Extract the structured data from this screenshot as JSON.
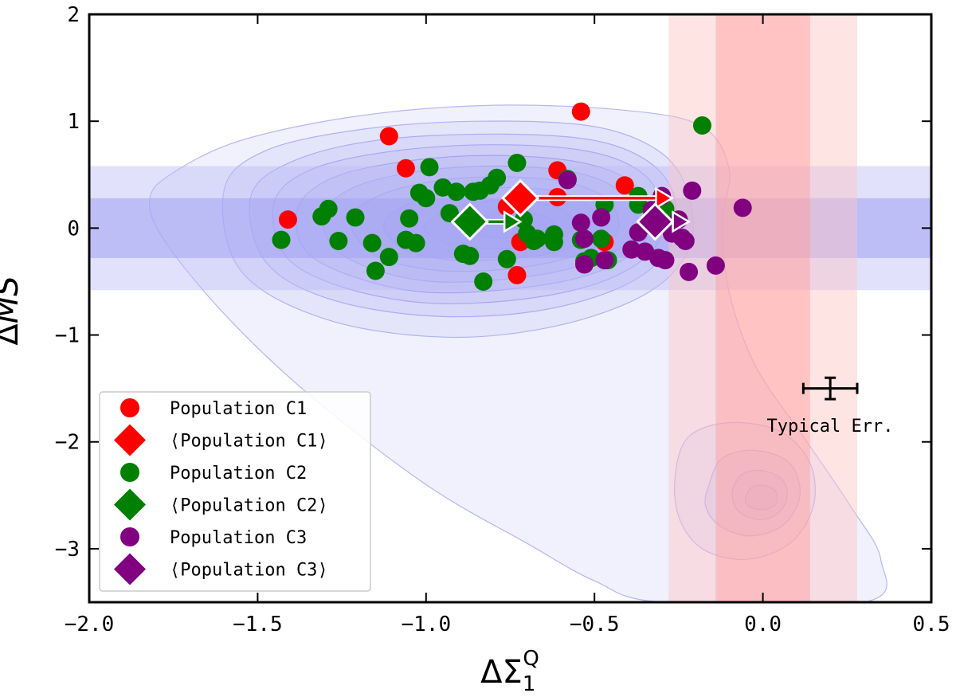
{
  "chart_data": {
    "type": "scatter",
    "xlabel": "ΔΣ",
    "xlabel_sub": "1",
    "xlabel_sup": "Q",
    "ylabel": "ΔMS",
    "xlim": [
      -2.0,
      0.5
    ],
    "ylim": [
      -3.5,
      2.0
    ],
    "xticks": [
      -2.0,
      -1.5,
      -1.0,
      -0.5,
      0.0,
      0.5
    ],
    "xtick_labels": [
      "−2.0",
      "−1.5",
      "−1.0",
      "−0.5",
      "0.0",
      "0.5"
    ],
    "yticks": [
      -3,
      -2,
      -1,
      0,
      1,
      2
    ],
    "ytick_labels": [
      "−3",
      "−2",
      "−1",
      "0",
      "1",
      "2"
    ],
    "bands": {
      "horizontal": [
        {
          "from": -0.58,
          "to": 0.58,
          "color": "#bdbdf7",
          "opacity": 0.45
        },
        {
          "from": -0.28,
          "to": 0.28,
          "color": "#a3a3f2",
          "opacity": 0.55
        }
      ],
      "vertical": [
        {
          "from": -0.28,
          "to": 0.28,
          "color": "#ffc4c4",
          "opacity": 0.45
        },
        {
          "from": -0.14,
          "to": 0.14,
          "color": "#ff9c9c",
          "opacity": 0.45
        }
      ]
    },
    "density_contours": [
      {
        "level": 1,
        "points": [
          [
            -1.82,
            0.28
          ],
          [
            -1.75,
            0.52
          ],
          [
            -1.55,
            0.82
          ],
          [
            -1.2,
            1.05
          ],
          [
            -0.8,
            1.15
          ],
          [
            -0.4,
            1.1
          ],
          [
            -0.18,
            0.95
          ],
          [
            -0.1,
            0.55
          ],
          [
            -0.12,
            0.05
          ],
          [
            -0.1,
            -0.6
          ],
          [
            -0.02,
            -1.3
          ],
          [
            0.12,
            -1.95
          ],
          [
            0.26,
            -2.6
          ],
          [
            0.35,
            -3.1
          ],
          [
            0.3,
            -3.5
          ],
          [
            -0.3,
            -3.5
          ],
          [
            -0.5,
            -3.3
          ],
          [
            -0.7,
            -2.95
          ],
          [
            -1.0,
            -2.4
          ],
          [
            -1.35,
            -1.55
          ],
          [
            -1.6,
            -0.8
          ],
          [
            -1.78,
            -0.1
          ]
        ]
      },
      {
        "level": 2,
        "points": [
          [
            -1.6,
            0.35
          ],
          [
            -1.48,
            0.72
          ],
          [
            -1.2,
            0.92
          ],
          [
            -0.85,
            1.0
          ],
          [
            -0.5,
            0.95
          ],
          [
            -0.3,
            0.7
          ],
          [
            -0.22,
            0.3
          ],
          [
            -0.22,
            -0.2
          ],
          [
            -0.35,
            -0.62
          ],
          [
            -0.62,
            -0.92
          ],
          [
            -0.95,
            -1.02
          ],
          [
            -1.3,
            -0.85
          ],
          [
            -1.55,
            -0.4
          ]
        ]
      },
      {
        "level": 3,
        "points": [
          [
            -1.52,
            0.3
          ],
          [
            -1.4,
            0.62
          ],
          [
            -1.15,
            0.82
          ],
          [
            -0.8,
            0.88
          ],
          [
            -0.5,
            0.82
          ],
          [
            -0.33,
            0.6
          ],
          [
            -0.26,
            0.25
          ],
          [
            -0.28,
            -0.2
          ],
          [
            -0.42,
            -0.55
          ],
          [
            -0.68,
            -0.78
          ],
          [
            -1.0,
            -0.82
          ],
          [
            -1.3,
            -0.65
          ],
          [
            -1.48,
            -0.3
          ]
        ]
      },
      {
        "level": 4,
        "points": [
          [
            -1.45,
            0.25
          ],
          [
            -1.34,
            0.55
          ],
          [
            -1.1,
            0.72
          ],
          [
            -0.8,
            0.78
          ],
          [
            -0.52,
            0.72
          ],
          [
            -0.36,
            0.52
          ],
          [
            -0.3,
            0.2
          ],
          [
            -0.32,
            -0.18
          ],
          [
            -0.46,
            -0.48
          ],
          [
            -0.7,
            -0.66
          ],
          [
            -1.0,
            -0.7
          ],
          [
            -1.26,
            -0.54
          ],
          [
            -1.42,
            -0.25
          ]
        ]
      },
      {
        "level": 5,
        "points": [
          [
            -1.38,
            0.2
          ],
          [
            -1.27,
            0.48
          ],
          [
            -1.05,
            0.63
          ],
          [
            -0.8,
            0.68
          ],
          [
            -0.55,
            0.62
          ],
          [
            -0.4,
            0.45
          ],
          [
            -0.34,
            0.16
          ],
          [
            -0.36,
            -0.16
          ],
          [
            -0.5,
            -0.42
          ],
          [
            -0.72,
            -0.56
          ],
          [
            -1.0,
            -0.6
          ],
          [
            -1.22,
            -0.45
          ],
          [
            -1.36,
            -0.2
          ]
        ]
      },
      {
        "level": 6,
        "points": [
          [
            -1.3,
            0.16
          ],
          [
            -1.2,
            0.4
          ],
          [
            -1.0,
            0.54
          ],
          [
            -0.78,
            0.58
          ],
          [
            -0.57,
            0.53
          ],
          [
            -0.44,
            0.38
          ],
          [
            -0.38,
            0.13
          ],
          [
            -0.4,
            -0.13
          ],
          [
            -0.54,
            -0.35
          ],
          [
            -0.74,
            -0.47
          ],
          [
            -0.98,
            -0.5
          ],
          [
            -1.17,
            -0.37
          ],
          [
            -1.28,
            -0.16
          ]
        ]
      },
      {
        "level": 7,
        "points": [
          [
            -1.22,
            0.12
          ],
          [
            -1.12,
            0.33
          ],
          [
            -0.95,
            0.45
          ],
          [
            -0.77,
            0.48
          ],
          [
            -0.6,
            0.44
          ],
          [
            -0.48,
            0.31
          ],
          [
            -0.43,
            0.1
          ],
          [
            -0.45,
            -0.1
          ],
          [
            -0.58,
            -0.28
          ],
          [
            -0.75,
            -0.38
          ],
          [
            -0.95,
            -0.4
          ],
          [
            -1.12,
            -0.3
          ],
          [
            -1.2,
            -0.12
          ]
        ]
      },
      {
        "level": 8,
        "points": [
          [
            -1.12,
            0.08
          ],
          [
            -1.03,
            0.26
          ],
          [
            -0.9,
            0.36
          ],
          [
            -0.76,
            0.38
          ],
          [
            -0.62,
            0.35
          ],
          [
            -0.53,
            0.24
          ],
          [
            -0.49,
            0.08
          ],
          [
            -0.51,
            -0.08
          ],
          [
            -0.61,
            -0.22
          ],
          [
            -0.76,
            -0.29
          ],
          [
            -0.92,
            -0.3
          ],
          [
            -1.05,
            -0.22
          ],
          [
            -1.11,
            -0.08
          ]
        ]
      },
      {
        "level": 9,
        "points": [
          [
            -1.0,
            0.05
          ],
          [
            -0.93,
            0.18
          ],
          [
            -0.83,
            0.25
          ],
          [
            -0.73,
            0.26
          ],
          [
            -0.64,
            0.22
          ],
          [
            -0.58,
            0.14
          ],
          [
            -0.56,
            0.03
          ],
          [
            -0.59,
            -0.08
          ],
          [
            -0.66,
            -0.15
          ],
          [
            -0.76,
            -0.19
          ],
          [
            -0.88,
            -0.18
          ],
          [
            -0.96,
            -0.12
          ],
          [
            -1.0,
            -0.03
          ]
        ]
      },
      {
        "level": 10,
        "points": [
          [
            -0.9,
            0.02
          ],
          [
            -0.85,
            0.1
          ],
          [
            -0.78,
            0.14
          ],
          [
            -0.7,
            0.14
          ],
          [
            -0.64,
            0.1
          ],
          [
            -0.62,
            0.02
          ],
          [
            -0.65,
            -0.05
          ],
          [
            -0.72,
            -0.09
          ],
          [
            -0.8,
            -0.09
          ],
          [
            -0.86,
            -0.05
          ]
        ]
      },
      {
        "level": 2,
        "points": [
          [
            -0.26,
            -2.3
          ],
          [
            -0.22,
            -1.95
          ],
          [
            -0.1,
            -1.82
          ],
          [
            0.05,
            -1.9
          ],
          [
            0.14,
            -2.2
          ],
          [
            0.15,
            -2.6
          ],
          [
            0.08,
            -2.95
          ],
          [
            -0.05,
            -3.1
          ],
          [
            -0.18,
            -3.0
          ],
          [
            -0.25,
            -2.7
          ]
        ]
      },
      {
        "level": 3,
        "points": [
          [
            -0.16,
            -2.4
          ],
          [
            -0.12,
            -2.15
          ],
          [
            -0.02,
            -2.08
          ],
          [
            0.08,
            -2.2
          ],
          [
            0.11,
            -2.5
          ],
          [
            0.06,
            -2.78
          ],
          [
            -0.04,
            -2.88
          ],
          [
            -0.13,
            -2.78
          ],
          [
            -0.17,
            -2.6
          ]
        ]
      },
      {
        "level": 4,
        "points": [
          [
            -0.09,
            -2.45
          ],
          [
            -0.06,
            -2.3
          ],
          [
            0.0,
            -2.27
          ],
          [
            0.06,
            -2.36
          ],
          [
            0.07,
            -2.55
          ],
          [
            0.03,
            -2.7
          ],
          [
            -0.03,
            -2.72
          ],
          [
            -0.08,
            -2.62
          ]
        ]
      },
      {
        "level": 5,
        "points": [
          [
            -0.05,
            -2.5
          ],
          [
            -0.03,
            -2.42
          ],
          [
            0.01,
            -2.41
          ],
          [
            0.04,
            -2.47
          ],
          [
            0.04,
            -2.57
          ],
          [
            0.01,
            -2.63
          ],
          [
            -0.03,
            -2.62
          ],
          [
            -0.05,
            -2.57
          ]
        ]
      }
    ],
    "series": [
      {
        "name": "Population C1",
        "color": "#ff0000",
        "points": [
          [
            -1.41,
            0.08
          ],
          [
            -1.11,
            0.86
          ],
          [
            -1.06,
            0.56
          ],
          [
            -0.54,
            1.09
          ],
          [
            -0.61,
            0.54
          ],
          [
            -0.41,
            0.4
          ],
          [
            -0.76,
            0.2
          ],
          [
            -0.72,
            -0.13
          ],
          [
            -0.73,
            -0.44
          ],
          [
            -0.47,
            -0.13
          ],
          [
            -0.61,
            0.29
          ]
        ]
      },
      {
        "name": "Population C2",
        "color": "#008000",
        "points": [
          [
            -1.43,
            -0.11
          ],
          [
            -1.31,
            0.11
          ],
          [
            -1.29,
            0.18
          ],
          [
            -1.26,
            -0.12
          ],
          [
            -1.21,
            0.1
          ],
          [
            -1.16,
            -0.14
          ],
          [
            -1.15,
            -0.4
          ],
          [
            -1.11,
            -0.27
          ],
          [
            -1.06,
            -0.11
          ],
          [
            -1.05,
            0.09
          ],
          [
            -1.03,
            -0.14
          ],
          [
            -1.02,
            0.33
          ],
          [
            -1.0,
            0.28
          ],
          [
            -0.99,
            0.57
          ],
          [
            -0.95,
            0.38
          ],
          [
            -0.93,
            0.14
          ],
          [
            -0.91,
            0.34
          ],
          [
            -0.89,
            -0.24
          ],
          [
            -0.87,
            -0.26
          ],
          [
            -0.86,
            0.34
          ],
          [
            -0.84,
            0.35
          ],
          [
            -0.83,
            -0.5
          ],
          [
            -0.81,
            0.4
          ],
          [
            -0.79,
            0.47
          ],
          [
            -0.76,
            -0.29
          ],
          [
            -0.73,
            0.61
          ],
          [
            -0.71,
            0.08
          ],
          [
            -0.7,
            -0.05
          ],
          [
            -0.68,
            -0.12
          ],
          [
            -0.67,
            -0.1
          ],
          [
            -0.62,
            -0.06
          ],
          [
            -0.62,
            -0.13
          ],
          [
            -0.58,
            0.46
          ],
          [
            -0.54,
            -0.11
          ],
          [
            -0.53,
            -0.31
          ],
          [
            -0.51,
            -0.28
          ],
          [
            -0.48,
            -0.1
          ],
          [
            -0.47,
            0.22
          ],
          [
            -0.46,
            -0.3
          ],
          [
            -0.37,
            0.3
          ],
          [
            -0.37,
            0.22
          ],
          [
            -0.3,
            0.04
          ],
          [
            -0.18,
            0.96
          ],
          [
            -0.29,
            0.18
          ],
          [
            -0.33,
            0.02
          ]
        ]
      },
      {
        "name": "Population C3",
        "color": "#800080",
        "points": [
          [
            -0.58,
            0.45
          ],
          [
            -0.54,
            0.05
          ],
          [
            -0.53,
            -0.1
          ],
          [
            -0.53,
            -0.34
          ],
          [
            -0.48,
            0.1
          ],
          [
            -0.47,
            -0.3
          ],
          [
            -0.39,
            -0.2
          ],
          [
            -0.37,
            -0.04
          ],
          [
            -0.35,
            -0.22
          ],
          [
            -0.33,
            0.17
          ],
          [
            -0.31,
            -0.28
          ],
          [
            -0.29,
            -0.3
          ],
          [
            -0.27,
            -0.05
          ],
          [
            -0.24,
            -0.09
          ],
          [
            -0.23,
            -0.12
          ],
          [
            -0.22,
            -0.41
          ],
          [
            -0.21,
            0.35
          ],
          [
            -0.14,
            -0.35
          ],
          [
            -0.06,
            0.19
          ],
          [
            -0.25,
            0.08
          ],
          [
            -0.3,
            0.3
          ]
        ]
      }
    ],
    "means": [
      {
        "name": "⟨Population C1⟩",
        "color": "#ff0000",
        "x": -0.72,
        "y": 0.28,
        "arrow_to": -0.27
      },
      {
        "name": "⟨Population C2⟩",
        "color": "#008000",
        "x": -0.87,
        "y": 0.06,
        "arrow_to": -0.72
      },
      {
        "name": "⟨Population C3⟩",
        "color": "#800080",
        "x": -0.32,
        "y": 0.06,
        "arrow_to": -0.22
      }
    ],
    "typical_error": {
      "x": 0.2,
      "y": -1.5,
      "xerr": 0.08,
      "yerr": 0.1,
      "label": "Typical Err."
    },
    "legend": {
      "location": "lower-left",
      "entries": [
        {
          "label": "Population C1",
          "marker": "circle",
          "color": "#ff0000"
        },
        {
          "label": "⟨Population C1⟩",
          "marker": "diamond",
          "color": "#ff0000"
        },
        {
          "label": "Population C2",
          "marker": "circle",
          "color": "#008000"
        },
        {
          "label": "⟨Population C2⟩",
          "marker": "diamond",
          "color": "#008000"
        },
        {
          "label": "Population C3",
          "marker": "circle",
          "color": "#800080"
        },
        {
          "label": "⟨Population C3⟩",
          "marker": "diamond",
          "color": "#800080"
        }
      ]
    }
  }
}
